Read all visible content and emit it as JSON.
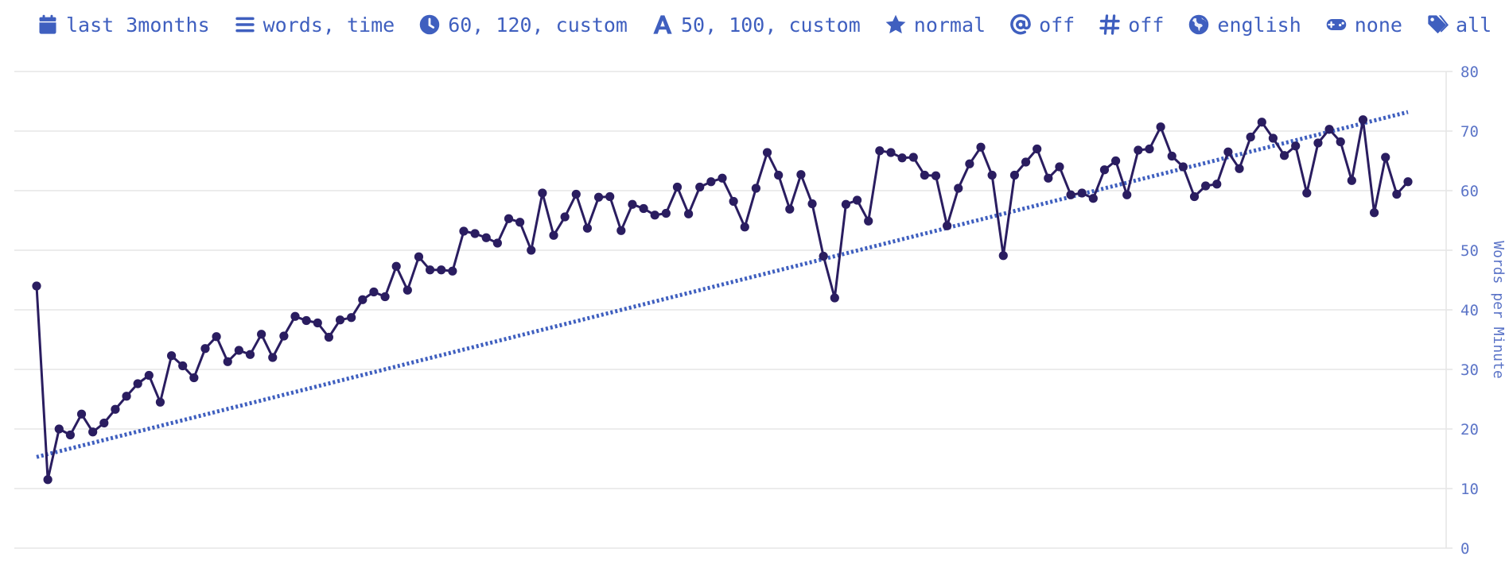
{
  "filters": [
    {
      "icon": "calendar-icon",
      "label": "last 3months"
    },
    {
      "icon": "list-icon",
      "label": "words, time"
    },
    {
      "icon": "clock-icon",
      "label": "60, 120, custom"
    },
    {
      "icon": "letter-a-icon",
      "label": "50, 100, custom"
    },
    {
      "icon": "star-icon",
      "label": "normal"
    },
    {
      "icon": "at-icon",
      "label": "off"
    },
    {
      "icon": "hash-icon",
      "label": "off"
    },
    {
      "icon": "globe-icon",
      "label": "english"
    },
    {
      "icon": "gamepad-icon",
      "label": "none"
    },
    {
      "icon": "tags-icon",
      "label": "all"
    }
  ],
  "colors": {
    "accent": "#3f5fbf",
    "line": "#2a1d60",
    "grid": "#e6e6e6",
    "axis_text": "#5b74c7"
  },
  "chart_data": {
    "type": "line",
    "ylabel": "Words per Minute",
    "ylim": [
      0,
      80
    ],
    "yticks": [
      "0",
      "10",
      "20",
      "30",
      "40",
      "50",
      "60",
      "70",
      "80"
    ],
    "grid": true,
    "y_axis_position": "right",
    "series": [
      {
        "values": [
          44,
          11.5,
          20,
          19,
          22.5,
          19.5,
          21,
          23.3,
          25.5,
          27.6,
          29,
          24.5,
          32.3,
          30.6,
          28.6,
          33.5,
          35.5,
          31.3,
          33.2,
          32.5,
          35.9,
          32,
          35.6,
          38.9,
          38.2,
          37.8,
          35.4,
          38.3,
          38.7,
          41.7,
          43,
          42.2,
          47.3,
          43.3,
          48.9,
          46.7,
          46.7,
          46.5,
          53.2,
          52.8,
          52.1,
          51.2,
          55.3,
          54.7,
          50,
          59.6,
          52.5,
          55.6,
          59.4,
          53.7,
          58.9,
          59,
          53.3,
          57.7,
          57,
          55.9,
          56.2,
          60.6,
          56.1,
          60.6,
          61.5,
          62.1,
          58.2,
          53.9,
          60.4,
          66.4,
          62.6,
          56.9,
          62.7,
          57.8,
          49,
          42,
          57.7,
          58.4,
          54.9,
          66.7,
          66.4,
          65.5,
          65.6,
          62.6,
          62.5,
          54.1,
          60.4,
          64.5,
          67.3,
          62.6,
          49.1,
          62.6,
          64.8,
          67,
          62.1,
          64,
          59.3,
          59.6,
          58.7,
          63.5,
          65,
          59.3,
          66.8,
          67,
          70.7,
          65.8,
          64,
          59,
          60.8,
          61.1,
          66.5,
          63.7,
          69,
          71.5,
          68.8,
          65.9,
          67.5,
          59.6,
          68,
          70.3,
          68.2,
          61.7,
          71.9,
          56.3,
          65.6,
          59.4,
          61.5
        ]
      }
    ],
    "trendline": {
      "start": 15.3,
      "end": 73.2
    }
  }
}
